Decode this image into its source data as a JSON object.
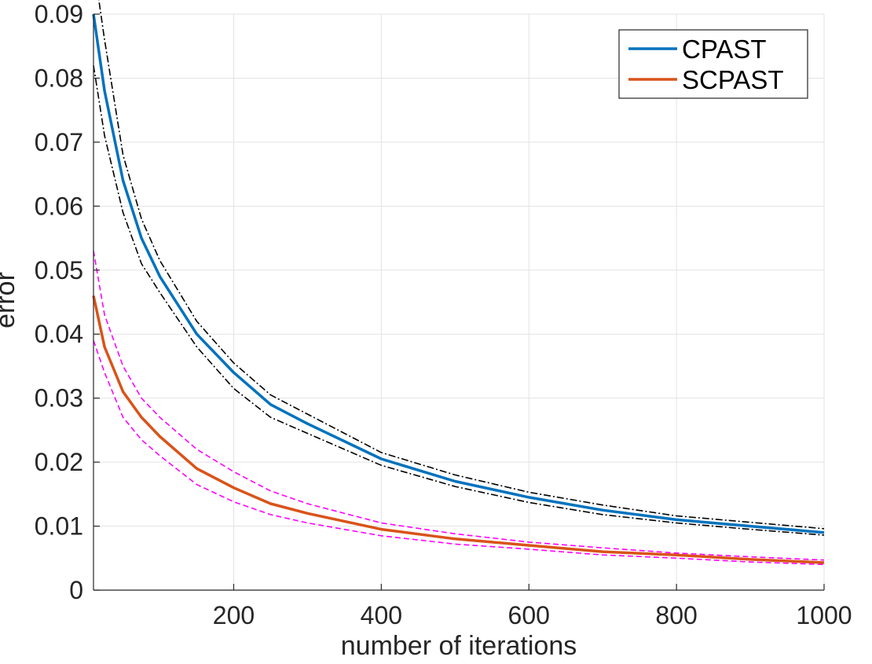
{
  "chart_data": {
    "type": "line",
    "title": "",
    "xlabel": "number of iterations",
    "ylabel": "error",
    "xlim": [
      10,
      1000
    ],
    "ylim": [
      0,
      0.09
    ],
    "xticks": [
      200,
      400,
      600,
      800,
      1000
    ],
    "xtick_labels": [
      "200",
      "400",
      "600",
      "800",
      "1000"
    ],
    "yticks": [
      0,
      0.01,
      0.02,
      0.03,
      0.04,
      0.05,
      0.06,
      0.07,
      0.08,
      0.09
    ],
    "ytick_labels": [
      "0",
      "0.01",
      "0.02",
      "0.03",
      "0.04",
      "0.05",
      "0.06",
      "0.07",
      "0.08",
      "0.09"
    ],
    "grid": true,
    "legend_position": "top-right",
    "x": [
      10,
      25,
      50,
      75,
      100,
      150,
      200,
      250,
      300,
      400,
      500,
      600,
      700,
      800,
      900,
      1000
    ],
    "series": [
      {
        "name": "CPAST",
        "color": "#0072BD",
        "style": "solid",
        "show_in_legend": true,
        "values": [
          0.09,
          0.078,
          0.064,
          0.055,
          0.049,
          0.04,
          0.034,
          0.029,
          0.026,
          0.0205,
          0.017,
          0.0145,
          0.0125,
          0.011,
          0.01,
          0.009
        ]
      },
      {
        "name": "SCPAST",
        "color": "#D95319",
        "style": "solid",
        "show_in_legend": true,
        "values": [
          0.046,
          0.038,
          0.031,
          0.027,
          0.024,
          0.019,
          0.016,
          0.0135,
          0.012,
          0.0095,
          0.008,
          0.007,
          0.006,
          0.0055,
          0.0048,
          0.0043
        ]
      },
      {
        "name": "CPAST upper bound",
        "color": "#000000",
        "style": "dash-dot",
        "show_in_legend": false,
        "values": [
          0.098,
          0.086,
          0.068,
          0.058,
          0.0515,
          0.042,
          0.0355,
          0.0305,
          0.0275,
          0.0215,
          0.018,
          0.0153,
          0.0133,
          0.0116,
          0.0106,
          0.0096
        ]
      },
      {
        "name": "CPAST lower bound",
        "color": "#000000",
        "style": "dash-dot",
        "show_in_legend": false,
        "values": [
          0.082,
          0.071,
          0.059,
          0.051,
          0.0465,
          0.038,
          0.0315,
          0.027,
          0.0245,
          0.0195,
          0.0162,
          0.0137,
          0.0118,
          0.0105,
          0.0095,
          0.0086
        ]
      },
      {
        "name": "SCPAST upper bound",
        "color": "#FF00FF",
        "style": "dashed",
        "show_in_legend": false,
        "values": [
          0.053,
          0.043,
          0.035,
          0.03,
          0.027,
          0.022,
          0.0185,
          0.0155,
          0.0135,
          0.0105,
          0.0088,
          0.0075,
          0.0066,
          0.0058,
          0.0052,
          0.0047
        ]
      },
      {
        "name": "SCPAST lower bound",
        "color": "#FF00FF",
        "style": "dashed",
        "show_in_legend": false,
        "values": [
          0.039,
          0.034,
          0.027,
          0.0235,
          0.021,
          0.0165,
          0.0138,
          0.0118,
          0.0105,
          0.0085,
          0.0072,
          0.0064,
          0.0055,
          0.005,
          0.0044,
          0.004
        ]
      }
    ]
  }
}
